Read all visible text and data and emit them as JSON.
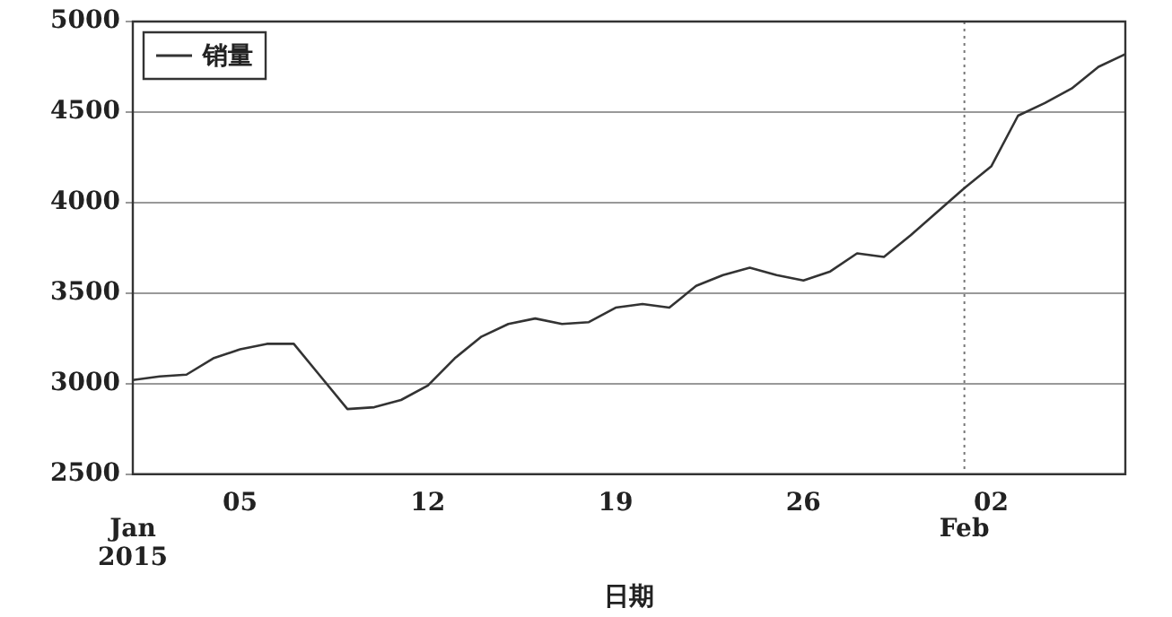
{
  "chart_data": {
    "type": "line",
    "xlabel": "日期",
    "x": [
      "2015-01-01",
      "2015-01-02",
      "2015-01-03",
      "2015-01-04",
      "2015-01-05",
      "2015-01-06",
      "2015-01-07",
      "2015-01-08",
      "2015-01-09",
      "2015-01-10",
      "2015-01-11",
      "2015-01-12",
      "2015-01-13",
      "2015-01-14",
      "2015-01-15",
      "2015-01-16",
      "2015-01-17",
      "2015-01-18",
      "2015-01-19",
      "2015-01-20",
      "2015-01-21",
      "2015-01-22",
      "2015-01-23",
      "2015-01-24",
      "2015-01-25",
      "2015-01-26",
      "2015-01-27",
      "2015-01-28",
      "2015-01-29",
      "2015-01-30",
      "2015-01-31",
      "2015-02-01",
      "2015-02-02",
      "2015-02-03",
      "2015-02-04",
      "2015-02-05",
      "2015-02-06",
      "2015-02-07"
    ],
    "series": [
      {
        "name": "销量",
        "color": "#333333",
        "values": [
          3020,
          3040,
          3050,
          3140,
          3190,
          3220,
          3220,
          3040,
          2860,
          2870,
          2910,
          2990,
          3140,
          3260,
          3330,
          3360,
          3330,
          3340,
          3420,
          3440,
          3420,
          3540,
          3600,
          3640,
          3600,
          3570,
          3620,
          3720,
          3700,
          3820,
          3950,
          4080,
          4200,
          4480,
          4550,
          4630,
          4750,
          4820
        ]
      }
    ],
    "xlim": [
      "2015-01-01",
      "2015-02-07"
    ],
    "xticks": [
      {
        "value": "2015-01-05",
        "label": "05"
      },
      {
        "value": "2015-01-12",
        "label": "12"
      },
      {
        "value": "2015-01-19",
        "label": "19"
      },
      {
        "value": "2015-01-26",
        "label": "26"
      },
      {
        "value": "2015-02-02",
        "label": "02"
      }
    ],
    "annotations": [
      "Jan\n2015"
    ],
    "ylim": [
      2500,
      5000
    ],
    "yticks": [
      2500,
      3000,
      3500,
      4000,
      4500,
      5000
    ],
    "ref_lines": [
      {
        "axis": "x",
        "value": "2015-02-01",
        "line_style": "dotted",
        "label": "Feb"
      }
    ],
    "grid": "y",
    "legend": "top left",
    "marker": "none",
    "line_style": "solid"
  }
}
